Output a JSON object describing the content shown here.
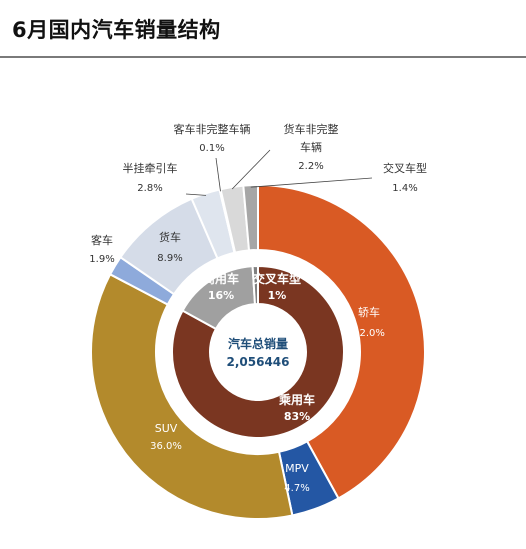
{
  "page_title": "6月国内汽车销量结构",
  "chart_data": {
    "type": "pie",
    "subtype": "nested-donut",
    "title": "6月国内汽车销量结构",
    "center_label": {
      "title": "汽车总销量",
      "value": "2,056446"
    },
    "inner_ring": [
      {
        "name": "乘用车",
        "value": 83,
        "label": "83%",
        "color": "#7a3621"
      },
      {
        "name": "商用车",
        "value": 16,
        "label": "16%",
        "color": "#a0a0a0"
      },
      {
        "name": "交叉车型",
        "value": 1,
        "label": "1%",
        "color": "#808080"
      }
    ],
    "outer_ring": [
      {
        "name": "轿车",
        "value": 42.0,
        "label": "42.0%",
        "color": "#d95a24"
      },
      {
        "name": "MPV",
        "value": 4.7,
        "label": "4.7%",
        "color": "#2457a4"
      },
      {
        "name": "SUV",
        "value": 36.0,
        "label": "36.0%",
        "color": "#b38a2c"
      },
      {
        "name": "客车",
        "value": 1.9,
        "label": "1.9%",
        "color": "#8eaadb"
      },
      {
        "name": "货车",
        "value": 8.9,
        "label": "8.9%",
        "color": "#d5dce8"
      },
      {
        "name": "半挂牵引车",
        "value": 2.8,
        "label": "2.8%",
        "color": "#dfe5ee"
      },
      {
        "name": "客车非完整车辆",
        "value": 0.1,
        "label": "0.1%",
        "color": "#4472c4"
      },
      {
        "name": "货车非完整车辆",
        "value": 2.2,
        "label": "2.2%",
        "color": "#d9d9d9"
      },
      {
        "name": "交叉车型",
        "value": 1.4,
        "label": "1.4%",
        "color": "#a6a6a6"
      }
    ]
  }
}
